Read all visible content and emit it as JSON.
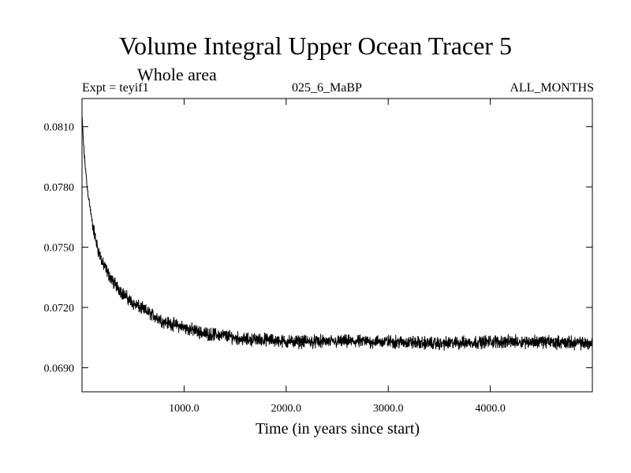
{
  "chart_data": {
    "type": "line",
    "title": "Volume Integral Upper Ocean Tracer 5",
    "subtitle": "Whole area",
    "annotations": {
      "left": "Expt = teyif1",
      "center": "025_6_MaBP",
      "right": "ALL_MONTHS"
    },
    "xlabel": "Time (in years since start)",
    "ylabel": "",
    "xlim": [
      0,
      5000
    ],
    "ylim": [
      0.0678,
      0.0824
    ],
    "x_ticks": [
      1000,
      2000,
      3000,
      4000
    ],
    "x_tick_labels": [
      "1000.0",
      "2000.0",
      "3000.0",
      "4000.0"
    ],
    "y_ticks": [
      0.069,
      0.072,
      0.075,
      0.078,
      0.081
    ],
    "y_tick_labels": [
      "0.0690",
      "0.0720",
      "0.0750",
      "0.0780",
      "0.0810"
    ],
    "grid": false,
    "series": [
      {
        "color": "#000000",
        "x": [
          0,
          20,
          50,
          100,
          150,
          200,
          300,
          400,
          500,
          600,
          700,
          800,
          1000,
          1200,
          1400,
          1600,
          1800,
          2000,
          2500,
          3000,
          3500,
          4000,
          4500,
          5000
        ],
        "y": [
          0.0815,
          0.0797,
          0.078,
          0.0762,
          0.075,
          0.0742,
          0.0733,
          0.0727,
          0.0722,
          0.0719,
          0.0716,
          0.0713,
          0.071,
          0.0707,
          0.0706,
          0.0704,
          0.0704,
          0.0703,
          0.0703,
          0.0703,
          0.0702,
          0.0703,
          0.0703,
          0.0702
        ],
        "noise_amplitude": 0.0004
      }
    ]
  }
}
